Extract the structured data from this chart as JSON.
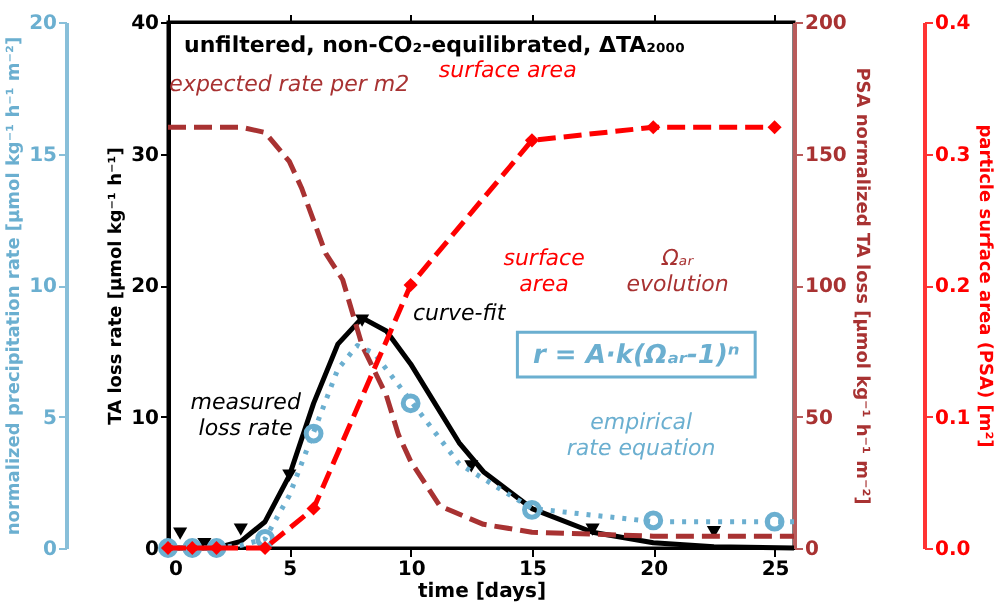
{
  "chart_data": [
    {
      "type": "line",
      "title": "unfiltered, non-CO₂-equilibrated, ΔTA₂₀₀₀",
      "xlabel": "time [days]",
      "ylabel": "TA loss rate [µmol kg⁻¹ h⁻¹]",
      "y2label": "PSA normalized TA loss [µmol kg⁻¹ h⁻¹ m⁻²]",
      "xlim": [
        0,
        25.8
      ],
      "xticks": [
        0,
        5,
        10,
        15,
        20,
        25
      ],
      "ylim": [
        0,
        40
      ],
      "yticks": [
        0,
        10,
        20,
        30,
        40
      ],
      "y2lim": [
        0,
        200
      ],
      "y2ticks": [
        0,
        50,
        100,
        150,
        200
      ],
      "series": [
        {
          "axis": "y2",
          "color": "#a83232",
          "line_style": "dashed",
          "marker": "none",
          "x": [
            0,
            3,
            4,
            5,
            5.5,
            6.5,
            7.2,
            8,
            9,
            9.5,
            10,
            11.2,
            13,
            15,
            20,
            25.8
          ],
          "values": [
            160,
            160,
            158,
            147,
            137,
            112,
            102,
            77,
            58,
            43,
            33,
            16,
            9,
            6,
            4.5,
            4.5
          ]
        },
        {
          "color": "#000000",
          "line_style": "solid",
          "marker": "none",
          "x": [
            0,
            2,
            3,
            4,
            5,
            6,
            7,
            8,
            9,
            10,
            11,
            12,
            13,
            15,
            17.5,
            20,
            22.5,
            25.8
          ],
          "values": [
            0,
            0,
            0.5,
            2,
            5.5,
            11,
            15.5,
            17.5,
            16.5,
            14,
            11,
            8,
            5.8,
            3,
            1.2,
            0.4,
            0.1,
            0
          ]
        },
        {
          "type": "scatter",
          "color": "#000000",
          "marker": "triangle",
          "x": [
            0.5,
            1.5,
            3,
            5,
            8,
            12.5,
            17.5,
            22.5
          ],
          "values": [
            1.1,
            0.3,
            1.4,
            5.5,
            17.3,
            6.2,
            1.4,
            1.2
          ]
        }
      ],
      "annotations": [
        "expected rate per m2",
        "surface area",
        "measured\nloss rate",
        "curve-fit",
        "surface\narea",
        "Ωₐᵣ\nevolution",
        "empirical\nrate equation",
        "r = A·k(Ωₐᵣ-1)ⁿ"
      ]
    },
    {
      "type": "line",
      "ylabel": "normalized precipitation rate [µmol kg⁻¹ h⁻¹ m⁻²]",
      "y2label": "particle surface area (PSA) [m²]",
      "tick_labels": "y",
      "xlim": [
        0,
        25.8
      ],
      "xticks": [
        0,
        5,
        10,
        15,
        20,
        25
      ],
      "ylim": [
        0,
        20
      ],
      "yticks": [
        0,
        5,
        10,
        15,
        20
      ],
      "y2lim": [
        0,
        0.4
      ],
      "y2ticks": [
        {
          "value": 0,
          "label": "0.0"
        },
        {
          "value": 0.1,
          "label": "0.1"
        },
        {
          "value": 0.2,
          "label": "0.2"
        },
        {
          "value": 0.3,
          "label": "0.3"
        },
        {
          "value": 0.4,
          "label": "0.4"
        }
      ],
      "series": [
        {
          "axis": "y2",
          "color": "#ff0000",
          "line_style": "dashed",
          "marker": "diamond",
          "x": [
            0,
            1,
            2,
            4,
            6,
            10,
            15,
            20,
            25
          ],
          "values": [
            0,
            0,
            0,
            0,
            0.03,
            0.2,
            0.31,
            0.32,
            0.32
          ]
        },
        {
          "color": "#6bafd0",
          "line_style": "dotted",
          "marker": "none",
          "x": [
            0,
            2,
            3,
            4,
            5,
            6,
            7,
            7.8,
            8.5,
            10,
            12,
            15,
            20,
            25.8
          ],
          "values": [
            0,
            0,
            0.1,
            0.35,
            2,
            4.4,
            6.8,
            7.7,
            7.4,
            5.6,
            3.2,
            1.5,
            1.0,
            1.0
          ]
        },
        {
          "type": "scatter",
          "color": "#6bafd0",
          "marker": "circle",
          "x": [
            0,
            1,
            2,
            4,
            6,
            10,
            15,
            20,
            25
          ],
          "values": [
            0,
            0,
            0,
            0.35,
            4.35,
            5.5,
            1.45,
            1.05,
            1.0
          ]
        }
      ]
    }
  ]
}
